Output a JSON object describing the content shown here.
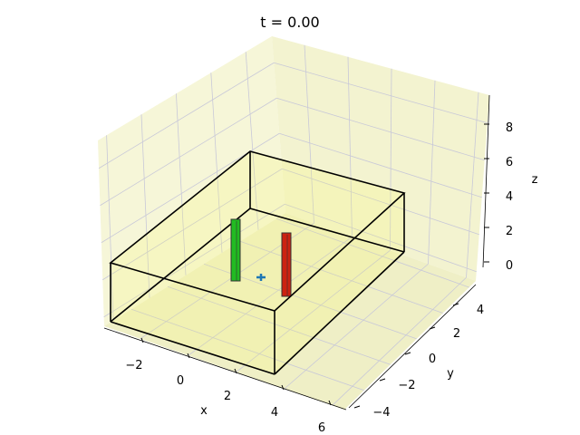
{
  "chart_data": {
    "type": "3d-scatter-bars",
    "title": "t = 0.00",
    "xlabel": "x",
    "ylabel": "y",
    "zlabel": "z",
    "xticks": [
      "−2",
      "0",
      "2",
      "4",
      "6"
    ],
    "yticks": [
      "−4",
      "−2",
      "0",
      "2",
      "4"
    ],
    "zticks": [
      "0",
      "2",
      "4",
      "6",
      "8"
    ],
    "xlim": [
      -3.5,
      6.5
    ],
    "ylim": [
      -5,
      5
    ],
    "zlim": [
      -0.5,
      9.5
    ],
    "grid": true,
    "pane_color": "#f5f5d2",
    "box": {
      "x": [
        -3,
        4
      ],
      "y": [
        -3,
        4
      ],
      "z": [
        0,
        4
      ],
      "edge_color": "#000000"
    },
    "objects": [
      {
        "kind": "bar",
        "color": "#22bb22",
        "x": 1,
        "y": 2,
        "height": 3.5
      },
      {
        "kind": "bar",
        "color": "#cc2211",
        "x": 3,
        "y": 0.5,
        "height": 3.5
      },
      {
        "kind": "point",
        "color": "#1f77b4",
        "x": 1.5,
        "y": 0.5,
        "z": 0
      }
    ]
  }
}
